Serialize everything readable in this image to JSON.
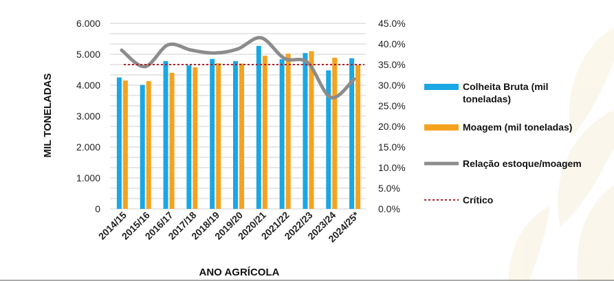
{
  "chart_data": {
    "type": "bar",
    "categories": [
      "2014/15",
      "2015/16",
      "2016/17",
      "2017/18",
      "2018/19",
      "2019/20",
      "2020/21",
      "2021/22",
      "2022/23",
      "2023/24",
      "2024/25*"
    ],
    "xlabel": "ANO AGRÍCOLA",
    "ylabel": "MIL TONELADAS",
    "ylim": [
      0,
      6000
    ],
    "y_ticks": [
      "0",
      "1.000",
      "2.000",
      "3.000",
      "4.000",
      "5.000",
      "6.000"
    ],
    "y2lim": [
      0,
      45
    ],
    "y2_ticks": [
      "0.0%",
      "5.0%",
      "10.0%",
      "15.0%",
      "20.0%",
      "25.0%",
      "30.0%",
      "35.0%",
      "40.0%",
      "45.0%"
    ],
    "grid": true,
    "legend_position": "right",
    "series": [
      {
        "name": "Colheita Bruta (mil toneladas)",
        "type": "bar",
        "color": "#1aa7e3",
        "values": [
          4250,
          4010,
          4780,
          4640,
          4850,
          4780,
          5270,
          4840,
          5040,
          4480,
          4870
        ]
      },
      {
        "name": "Moagem (mil toneladas)",
        "type": "bar",
        "color": "#f5a31f",
        "values": [
          4150,
          4130,
          4400,
          4580,
          4710,
          4700,
          4950,
          5020,
          5100,
          4890,
          4650
        ]
      },
      {
        "name": "Relação estoque/moagem",
        "type": "line",
        "axis": "right",
        "color": "#8c8c8c",
        "values": [
          38.5,
          34.5,
          39.8,
          38.5,
          37.8,
          38.8,
          41.5,
          36.5,
          35.5,
          27.0,
          31.5
        ]
      },
      {
        "name": "Crítico",
        "type": "line",
        "axis": "right",
        "style": "dotted",
        "color": "#b0202a",
        "values": [
          35,
          35,
          35,
          35,
          35,
          35,
          35,
          35,
          35,
          35,
          35
        ]
      }
    ]
  }
}
